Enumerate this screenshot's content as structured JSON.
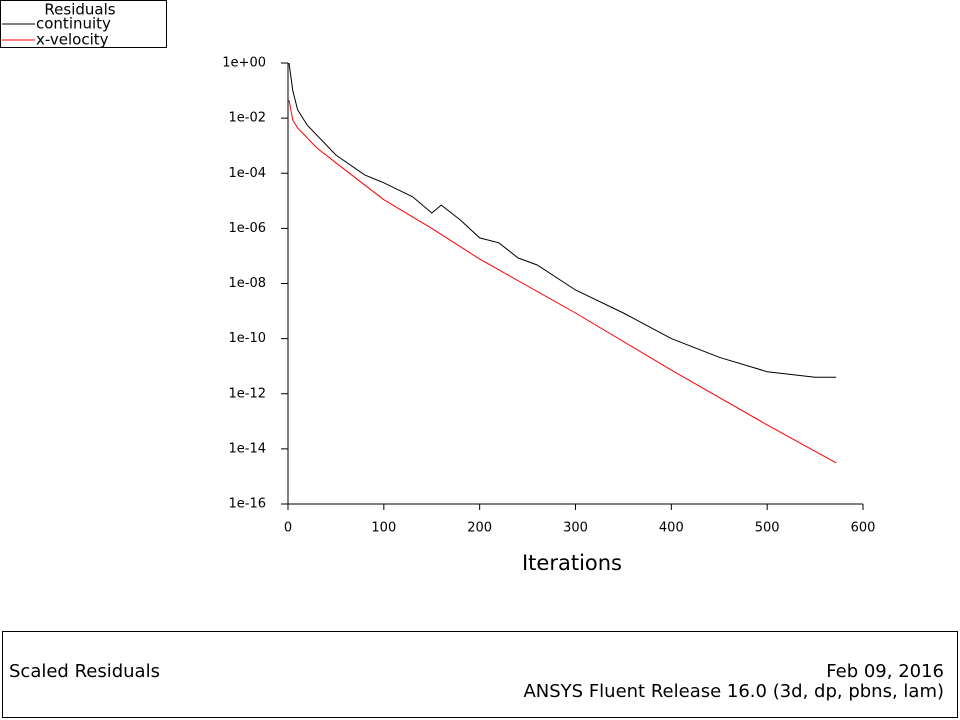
{
  "chart_data": {
    "type": "line",
    "log_y": true,
    "legend_title": "Residuals",
    "legend_position": "top-left",
    "x_label": "Iterations",
    "xlim": [
      0,
      600
    ],
    "xticks": [
      0,
      100,
      200,
      300,
      400,
      500,
      600
    ],
    "ylim": [
      1e-16,
      1
    ],
    "yticks": [
      {
        "value": 1e-16,
        "label": "1e-16"
      },
      {
        "value": 1e-14,
        "label": "1e-14"
      },
      {
        "value": 1e-12,
        "label": "1e-12"
      },
      {
        "value": 1e-10,
        "label": "1e-10"
      },
      {
        "value": 1e-08,
        "label": "1e-08"
      },
      {
        "value": 1e-06,
        "label": "1e-06"
      },
      {
        "value": 0.0001,
        "label": "1e-04"
      },
      {
        "value": 0.01,
        "label": "1e-02"
      },
      {
        "value": 1,
        "label": "1e+00"
      }
    ],
    "series": [
      {
        "name": "continuity",
        "color": "#000000",
        "x": [
          1,
          5,
          10,
          20,
          50,
          80,
          100,
          130,
          150,
          160,
          180,
          200,
          220,
          240,
          260,
          300,
          350,
          400,
          450,
          500,
          550,
          572
        ],
        "values": [
          1,
          0.1,
          0.02,
          0.0056,
          0.00046,
          8.7e-05,
          4.5e-05,
          1.4e-05,
          3.6e-06,
          7e-06,
          2e-06,
          4.5e-07,
          3e-07,
          8.5e-08,
          4.7e-08,
          5.8e-09,
          8.5e-10,
          1e-10,
          2.1e-11,
          6.3e-12,
          4e-12,
          4e-12
        ]
      },
      {
        "name": "x-velocity",
        "color": "#ff0000",
        "x": [
          1,
          5,
          10,
          30,
          50,
          100,
          150,
          200,
          300,
          400,
          500,
          572
        ],
        "values": [
          0.045,
          0.0085,
          0.0044,
          0.00083,
          0.00024,
          1.1e-05,
          1e-06,
          7.7e-08,
          8.5e-10,
          7.2e-12,
          7.4e-14,
          3.1e-15
        ]
      }
    ]
  },
  "footer": {
    "left": "Scaled Residuals",
    "date": "Feb 09, 2016",
    "release": "ANSYS Fluent Release 16.0 (3d, dp, pbns, lam)"
  }
}
